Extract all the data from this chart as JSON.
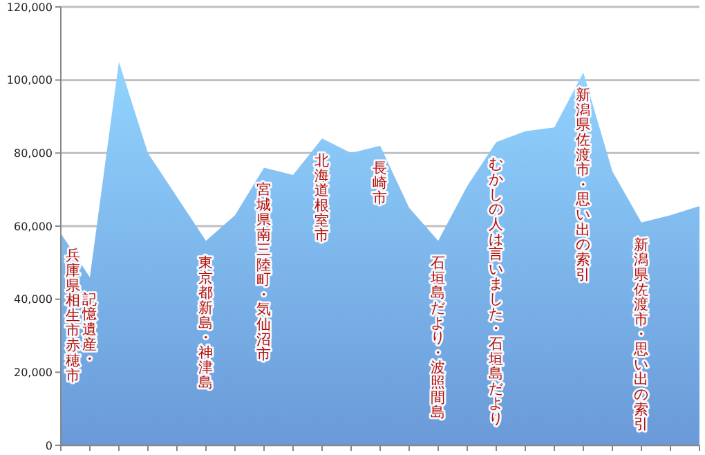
{
  "chart_data": {
    "type": "area",
    "categories": [
      "兵庫県相生市赤穂市",
      "記憶遺産・",
      null,
      null,
      null,
      "東京都新島・神津島",
      null,
      "宮城県南三陸町・気仙沼市",
      null,
      "北海道根室市",
      null,
      "長崎市",
      null,
      "石垣島だより・波照間島",
      null,
      "むかしの人は言いました・石垣島だより",
      null,
      null,
      "新潟県佐渡市・思い出の索引",
      null,
      "新潟県佐渡市・思い出の索引",
      null,
      null
    ],
    "values": [
      58000,
      46000,
      105000,
      80000,
      68000,
      56000,
      63000,
      76000,
      74000,
      84000,
      80000,
      82000,
      65000,
      56000,
      71000,
      83000,
      86000,
      87000,
      102000,
      75000,
      61000,
      63000,
      65500
    ],
    "color": "#6a9ad8",
    "ylim": [
      0,
      120000
    ],
    "yticks": [
      {
        "value": 0,
        "label": "0"
      },
      {
        "value": 20000,
        "label": "20,000"
      },
      {
        "value": 40000,
        "label": "40,000"
      },
      {
        "value": 60000,
        "label": "60,000"
      },
      {
        "value": 80000,
        "label": "80,000"
      },
      {
        "value": 100000,
        "label": "100,000"
      },
      {
        "value": 120000,
        "label": "120,000"
      }
    ],
    "grid": "y"
  }
}
